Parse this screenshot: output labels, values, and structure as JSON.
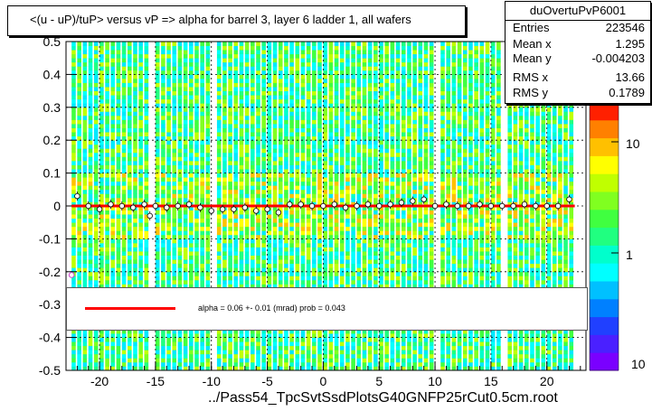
{
  "chart_data": {
    "type": "heatmap",
    "title": "<(u - uP)/tuP> versus   vP => alpha for barrel 3, layer 6 ladder 1, all wafers",
    "xlabel": "../Pass54_TpcSvtSsdPlotsG40GNFP25rCut0.5cm.root",
    "ylabel": "",
    "xlim": [
      -23,
      23.5
    ],
    "ylim": [
      -0.5,
      0.5
    ],
    "x_ticks": [
      "-20",
      "-15",
      "-10",
      "-5",
      "0",
      "5",
      "10",
      "15",
      "20"
    ],
    "y_ticks": [
      "-0.5",
      "-0.4",
      "-0.3",
      "-0.2",
      "-0.1",
      "0",
      "0.1",
      "0.2",
      "0.3",
      "0.4",
      "0.5"
    ],
    "z_scale": "log",
    "z_ticks": [
      "1",
      "10"
    ],
    "z_tick_bottom": "10",
    "grid": true,
    "white_gap_columns_x": [
      -15.5,
      -10,
      10,
      16
    ],
    "profile_points": [
      {
        "x": -22,
        "y": 0.03
      },
      {
        "x": -21,
        "y": 0.0
      },
      {
        "x": -20,
        "y": -0.01
      },
      {
        "x": -19,
        "y": 0.005
      },
      {
        "x": -18,
        "y": 0.0
      },
      {
        "x": -17,
        "y": -0.005
      },
      {
        "x": -16,
        "y": 0.005
      },
      {
        "x": -15.5,
        "y": -0.03
      },
      {
        "x": -15,
        "y": 0.0
      },
      {
        "x": -14,
        "y": -0.005
      },
      {
        "x": -13,
        "y": 0.0
      },
      {
        "x": -12,
        "y": 0.005
      },
      {
        "x": -11,
        "y": -0.005
      },
      {
        "x": -10,
        "y": -0.015
      },
      {
        "x": -9,
        "y": -0.01
      },
      {
        "x": -8,
        "y": -0.01
      },
      {
        "x": -7,
        "y": -0.005
      },
      {
        "x": -6,
        "y": -0.015
      },
      {
        "x": -5,
        "y": -0.01
      },
      {
        "x": -4,
        "y": -0.02
      },
      {
        "x": -3,
        "y": 0.005
      },
      {
        "x": -2,
        "y": 0.005
      },
      {
        "x": -1,
        "y": 0.0
      },
      {
        "x": 0,
        "y": 0.0
      },
      {
        "x": 1,
        "y": 0.005
      },
      {
        "x": 2,
        "y": -0.005
      },
      {
        "x": 3,
        "y": 0.0
      },
      {
        "x": 4,
        "y": 0.005
      },
      {
        "x": 5,
        "y": 0.0
      },
      {
        "x": 6,
        "y": 0.005
      },
      {
        "x": 7,
        "y": 0.01
      },
      {
        "x": 8,
        "y": 0.015
      },
      {
        "x": 9,
        "y": 0.02
      },
      {
        "x": 10,
        "y": 0.0
      },
      {
        "x": 11,
        "y": 0.005
      },
      {
        "x": 12,
        "y": 0.0
      },
      {
        "x": 13,
        "y": 0.0
      },
      {
        "x": 14,
        "y": 0.005
      },
      {
        "x": 15,
        "y": 0.0
      },
      {
        "x": 16,
        "y": 0.0
      },
      {
        "x": 17,
        "y": 0.0
      },
      {
        "x": 18,
        "y": 0.005
      },
      {
        "x": 19,
        "y": 0.0
      },
      {
        "x": 20,
        "y": 0.0
      },
      {
        "x": 21,
        "y": 0.0
      },
      {
        "x": 22,
        "y": 0.02
      }
    ],
    "outlier_points": [
      {
        "x": -22.5,
        "y": -0.21
      }
    ],
    "fit_line": {
      "x_start": -22.5,
      "x_end": 22.5,
      "y": 0.0,
      "color": "#ff0000"
    },
    "fit_label": "alpha =     0.06 +-  0.01 (mrad) prob = 0.043",
    "stats": {
      "name": "duOvertuPvP6001",
      "rows": [
        {
          "label": "Entries",
          "value": "223546"
        },
        {
          "label": "Mean x",
          "value": "1.295"
        },
        {
          "label": "Mean y",
          "value": "-0.004203"
        },
        {
          "label": "RMS x",
          "value": "13.66"
        },
        {
          "label": "RMS y",
          "value": "0.1789"
        }
      ]
    }
  },
  "colors": {
    "fit": "#ff0000",
    "palette": [
      "#7a00ff",
      "#4a20ff",
      "#2040ff",
      "#0080ff",
      "#00c0ff",
      "#00ffff",
      "#00ffcc",
      "#20ff80",
      "#40ff40",
      "#80ff20",
      "#c0ff00",
      "#ffff00",
      "#ffc000",
      "#ff8000",
      "#ff2000"
    ]
  }
}
